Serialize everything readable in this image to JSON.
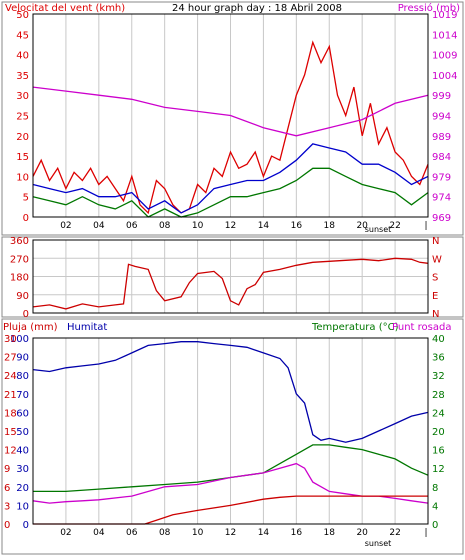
{
  "title": "24 hour graph day : 18 Abril 2008",
  "colors": {
    "wind": "#dd0000",
    "gust": "#0000cc",
    "wind_dark": "#007700",
    "pressure": "#cc00cc",
    "dir": "#cc0000",
    "rain": "#cc0000",
    "humidity": "#0000aa",
    "temperature": "#007700",
    "dewpoint": "#cc00cc",
    "grid": "#c8c8c8"
  },
  "chart_data": [
    {
      "type": "line",
      "panel": "wind-pressure",
      "title": "24 hour graph day : 18 Abril 2008",
      "left_label": "Velocitat del vent (kmh)",
      "right_label": "Pressió (mb)",
      "x_ticks": [
        "02",
        "04",
        "06",
        "08",
        "10",
        "12",
        "14",
        "16",
        "18",
        "20",
        "22",
        "|"
      ],
      "sunset_label": "sunset",
      "left_ticks": [
        "0",
        "5",
        "10",
        "15",
        "20",
        "25",
        "30",
        "35",
        "40",
        "45",
        "50"
      ],
      "right_ticks": [
        "969",
        "974",
        "979",
        "984",
        "989",
        "994",
        "999",
        "1004",
        "1009",
        "1014",
        "1019"
      ],
      "ylim_left": [
        0,
        50
      ],
      "ylim_right": [
        969,
        1019
      ],
      "x_range_hours": [
        0,
        24
      ],
      "series": [
        {
          "key": "gust",
          "color_key": "wind",
          "points": [
            [
              0,
              10
            ],
            [
              0.5,
              14
            ],
            [
              1,
              9
            ],
            [
              1.5,
              12
            ],
            [
              2,
              7
            ],
            [
              2.5,
              11
            ],
            [
              3,
              9
            ],
            [
              3.5,
              12
            ],
            [
              4,
              8
            ],
            [
              4.5,
              10
            ],
            [
              5,
              7
            ],
            [
              5.5,
              4
            ],
            [
              6,
              10
            ],
            [
              6.5,
              3
            ],
            [
              7,
              1
            ],
            [
              7.5,
              9
            ],
            [
              8,
              7
            ],
            [
              8.5,
              3
            ],
            [
              9,
              1
            ],
            [
              9.5,
              2
            ],
            [
              10,
              8
            ],
            [
              10.5,
              6
            ],
            [
              11,
              12
            ],
            [
              11.5,
              10
            ],
            [
              12,
              16
            ],
            [
              12.5,
              12
            ],
            [
              13,
              13
            ],
            [
              13.5,
              16
            ],
            [
              14,
              10
            ],
            [
              14.5,
              15
            ],
            [
              15,
              14
            ],
            [
              15.5,
              22
            ],
            [
              16,
              30
            ],
            [
              16.5,
              35
            ],
            [
              17,
              43
            ],
            [
              17.5,
              38
            ],
            [
              18,
              42
            ],
            [
              18.5,
              30
            ],
            [
              19,
              25
            ],
            [
              19.5,
              32
            ],
            [
              20,
              20
            ],
            [
              20.5,
              28
            ],
            [
              21,
              18
            ],
            [
              21.5,
              22
            ],
            [
              22,
              16
            ],
            [
              22.5,
              14
            ],
            [
              23,
              10
            ],
            [
              23.5,
              8
            ],
            [
              24,
              13
            ]
          ]
        },
        {
          "key": "average",
          "color_key": "gust",
          "points": [
            [
              0,
              8
            ],
            [
              1,
              7
            ],
            [
              2,
              6
            ],
            [
              3,
              7
            ],
            [
              4,
              5
            ],
            [
              5,
              5
            ],
            [
              6,
              6
            ],
            [
              7,
              2
            ],
            [
              8,
              4
            ],
            [
              9,
              1
            ],
            [
              10,
              3
            ],
            [
              11,
              7
            ],
            [
              12,
              8
            ],
            [
              13,
              9
            ],
            [
              14,
              9
            ],
            [
              15,
              11
            ],
            [
              16,
              14
            ],
            [
              17,
              18
            ],
            [
              18,
              17
            ],
            [
              19,
              16
            ],
            [
              20,
              13
            ],
            [
              21,
              13
            ],
            [
              22,
              11
            ],
            [
              23,
              8
            ],
            [
              24,
              10
            ]
          ]
        },
        {
          "key": "minimum",
          "color_key": "wind_dark",
          "points": [
            [
              0,
              5
            ],
            [
              1,
              4
            ],
            [
              2,
              3
            ],
            [
              3,
              5
            ],
            [
              4,
              3
            ],
            [
              5,
              2
            ],
            [
              6,
              4
            ],
            [
              7,
              0
            ],
            [
              8,
              2
            ],
            [
              9,
              0
            ],
            [
              10,
              1
            ],
            [
              11,
              3
            ],
            [
              12,
              5
            ],
            [
              13,
              5
            ],
            [
              14,
              6
            ],
            [
              15,
              7
            ],
            [
              16,
              9
            ],
            [
              17,
              12
            ],
            [
              18,
              12
            ],
            [
              19,
              10
            ],
            [
              20,
              8
            ],
            [
              21,
              7
            ],
            [
              22,
              6
            ],
            [
              23,
              3
            ],
            [
              24,
              6
            ]
          ]
        },
        {
          "key": "pressure",
          "color_key": "pressure",
          "axis": "right",
          "points": [
            [
              0,
              1001
            ],
            [
              2,
              1000
            ],
            [
              4,
              999
            ],
            [
              6,
              998
            ],
            [
              8,
              996
            ],
            [
              10,
              995
            ],
            [
              12,
              994
            ],
            [
              14,
              991
            ],
            [
              16,
              989
            ],
            [
              18,
              991
            ],
            [
              20,
              993
            ],
            [
              22,
              997
            ],
            [
              24,
              999
            ]
          ]
        }
      ]
    },
    {
      "type": "line",
      "panel": "wind-direction",
      "left_ticks": [
        "0",
        "90",
        "180",
        "270",
        "360"
      ],
      "right_ticks": [
        "N",
        "E",
        "S",
        "W",
        "N"
      ],
      "ylim_left": [
        0,
        360
      ],
      "x_range_hours": [
        0,
        24
      ],
      "series": [
        {
          "key": "direction",
          "color_key": "dir",
          "points": [
            [
              0,
              30
            ],
            [
              1,
              40
            ],
            [
              2,
              20
            ],
            [
              3,
              45
            ],
            [
              4,
              30
            ],
            [
              5,
              40
            ],
            [
              5.5,
              45
            ],
            [
              5.8,
              240
            ],
            [
              6.2,
              230
            ],
            [
              7,
              215
            ],
            [
              7.5,
              110
            ],
            [
              8,
              60
            ],
            [
              9,
              80
            ],
            [
              9.5,
              150
            ],
            [
              10,
              195
            ],
            [
              11,
              205
            ],
            [
              11.5,
              170
            ],
            [
              12,
              60
            ],
            [
              12.5,
              40
            ],
            [
              13,
              120
            ],
            [
              13.5,
              140
            ],
            [
              14,
              200
            ],
            [
              15,
              215
            ],
            [
              16,
              235
            ],
            [
              17,
              250
            ],
            [
              18,
              255
            ],
            [
              19,
              260
            ],
            [
              20,
              265
            ],
            [
              21,
              258
            ],
            [
              22,
              270
            ],
            [
              23,
              265
            ],
            [
              23.5,
              250
            ],
            [
              24,
              245
            ]
          ]
        }
      ]
    },
    {
      "type": "line",
      "panel": "rain-humidity-temperature",
      "rain_label": "Pluja (mm)",
      "humidity_label": "Humitat",
      "temperature_label": "Temperatura (°C)",
      "dewpoint_label": "Punt rosada",
      "x_ticks": [
        "02",
        "04",
        "06",
        "08",
        "10",
        "12",
        "14",
        "16",
        "18",
        "20",
        "22",
        "|"
      ],
      "sunset_label": "sunset",
      "rain_ticks": [
        "0",
        "3",
        "6",
        "9",
        "12",
        "15",
        "18",
        "21",
        "24",
        "27",
        "30"
      ],
      "humidity_ticks": [
        "0",
        "10",
        "20",
        "30",
        "40",
        "50",
        "60",
        "70",
        "80",
        "90",
        "100"
      ],
      "temp_ticks": [
        "0",
        "4",
        "8",
        "12",
        "16",
        "20",
        "24",
        "28",
        "32",
        "36",
        "40"
      ],
      "ylim_humidity": [
        0,
        100
      ],
      "ylim_temperature": [
        0,
        40
      ],
      "ylim_rain": [
        0,
        30
      ],
      "x_range_hours": [
        0,
        24
      ],
      "series": [
        {
          "key": "humidity",
          "color_key": "humidity",
          "axis": "humidity",
          "points": [
            [
              0,
              83
            ],
            [
              1,
              82
            ],
            [
              2,
              84
            ],
            [
              3,
              85
            ],
            [
              4,
              86
            ],
            [
              5,
              88
            ],
            [
              6,
              92
            ],
            [
              7,
              96
            ],
            [
              8,
              97
            ],
            [
              9,
              98
            ],
            [
              10,
              98
            ],
            [
              11,
              97
            ],
            [
              12,
              96
            ],
            [
              13,
              95
            ],
            [
              14,
              92
            ],
            [
              15,
              89
            ],
            [
              15.5,
              84
            ],
            [
              16,
              70
            ],
            [
              16.5,
              65
            ],
            [
              17,
              48
            ],
            [
              17.5,
              45
            ],
            [
              18,
              46
            ],
            [
              19,
              44
            ],
            [
              20,
              46
            ],
            [
              21,
              50
            ],
            [
              22,
              54
            ],
            [
              23,
              58
            ],
            [
              24,
              60
            ]
          ]
        },
        {
          "key": "temperature",
          "color_key": "temperature",
          "axis": "temperature",
          "points": [
            [
              0,
              7
            ],
            [
              2,
              7
            ],
            [
              4,
              7.5
            ],
            [
              6,
              8
            ],
            [
              8,
              8.5
            ],
            [
              10,
              9
            ],
            [
              12,
              10
            ],
            [
              14,
              11
            ],
            [
              15,
              13
            ],
            [
              16,
              15
            ],
            [
              16.5,
              16
            ],
            [
              17,
              17
            ],
            [
              18,
              17
            ],
            [
              19,
              16.5
            ],
            [
              20,
              16
            ],
            [
              21,
              15
            ],
            [
              22,
              14
            ],
            [
              23,
              12
            ],
            [
              24,
              10.5
            ]
          ]
        },
        {
          "key": "dewpoint",
          "color_key": "dewpoint",
          "axis": "temperature",
          "points": [
            [
              0,
              5
            ],
            [
              1,
              4.5
            ],
            [
              2,
              4.8
            ],
            [
              3,
              5
            ],
            [
              4,
              5.2
            ],
            [
              6,
              6
            ],
            [
              8,
              8
            ],
            [
              10,
              8.5
            ],
            [
              12,
              10
            ],
            [
              14,
              11
            ],
            [
              15,
              12
            ],
            [
              16,
              13
            ],
            [
              16.5,
              12
            ],
            [
              17,
              9
            ],
            [
              18,
              7
            ],
            [
              19,
              6.5
            ],
            [
              20,
              6
            ],
            [
              21,
              6
            ],
            [
              22,
              5.5
            ],
            [
              23,
              5
            ],
            [
              24,
              4.5
            ]
          ]
        },
        {
          "key": "rain",
          "color_key": "rain",
          "axis": "rain",
          "points": [
            [
              0,
              0
            ],
            [
              2,
              0
            ],
            [
              4,
              0
            ],
            [
              6,
              0
            ],
            [
              6.8,
              0
            ],
            [
              7.5,
              0.6
            ],
            [
              8.5,
              1.5
            ],
            [
              10,
              2.2
            ],
            [
              12,
              3
            ],
            [
              14,
              4
            ],
            [
              15,
              4.3
            ],
            [
              16,
              4.5
            ],
            [
              24,
              4.5
            ]
          ]
        }
      ]
    }
  ]
}
